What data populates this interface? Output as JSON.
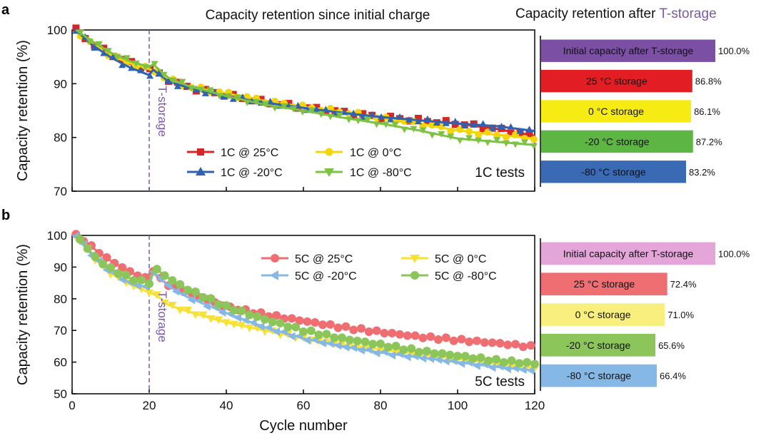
{
  "figure": {
    "panel_a_letter": "a",
    "panel_b_letter": "b",
    "left_title": "Capacity retention since initial charge",
    "right_title_prefix": "Capacity retention after ",
    "right_title_highlight": "T-storage",
    "storage_marker_label": "T-storage",
    "highlight_color": "#7b5aa6"
  },
  "chart_data": [
    {
      "id": "a-line",
      "type": "line",
      "title": "Capacity retention since initial charge",
      "xlabel": "",
      "ylabel": "Capacity retention (%)",
      "xlim": [
        0,
        120
      ],
      "ylim": [
        70,
        100
      ],
      "xticks": [
        0,
        20,
        40,
        60,
        80,
        100,
        120
      ],
      "yticks": [
        70,
        80,
        90,
        100
      ],
      "tag": "1C tests",
      "storage_cycle": 20,
      "series": [
        {
          "name": "1C @  25°C",
          "color": "#d62728",
          "marker": "square",
          "x": [
            1,
            5,
            10,
            15,
            20,
            21,
            25,
            30,
            40,
            50,
            60,
            70,
            80,
            90,
            100,
            110,
            120
          ],
          "y": [
            100,
            97.6,
            95.5,
            93.9,
            92.8,
            92.4,
            90.8,
            89.3,
            87.9,
            86.6,
            85.6,
            84.7,
            83.8,
            83.2,
            82.6,
            81.6,
            80.3
          ]
        },
        {
          "name": "1C @    0°C",
          "color": "#f2d60a",
          "marker": "circle",
          "x": [
            1,
            5,
            10,
            15,
            20,
            21,
            25,
            30,
            40,
            50,
            60,
            70,
            80,
            90,
            100,
            110,
            120
          ],
          "y": [
            100,
            97.4,
            95.3,
            93.8,
            92.7,
            92.5,
            90.8,
            89.5,
            88.2,
            86.8,
            85.7,
            84.8,
            83.6,
            82.6,
            81.3,
            80.5,
            79.8
          ]
        },
        {
          "name": "1C @ -20°C",
          "color": "#2f62b3",
          "marker": "triangle-up",
          "x": [
            1,
            5,
            10,
            15,
            20,
            21,
            25,
            30,
            40,
            50,
            60,
            70,
            80,
            90,
            100,
            110,
            120
          ],
          "y": [
            100,
            97.3,
            94.9,
            93.0,
            91.6,
            92.6,
            90.4,
            89.3,
            87.6,
            86.5,
            85.5,
            84.6,
            83.8,
            83.2,
            82.6,
            82.1,
            81.2
          ]
        },
        {
          "name": "1C @ -80°C",
          "color": "#7cc243",
          "marker": "triangle-down",
          "x": [
            1,
            5,
            10,
            15,
            20,
            21,
            25,
            30,
            40,
            50,
            60,
            70,
            80,
            90,
            100,
            110,
            120
          ],
          "y": [
            100,
            98.0,
            95.8,
            94.2,
            93.1,
            93.6,
            91.1,
            89.6,
            87.7,
            86.1,
            85.0,
            83.7,
            82.6,
            81.3,
            79.8,
            79.2,
            78.6
          ]
        }
      ]
    },
    {
      "id": "b-line",
      "type": "line",
      "title": "",
      "xlabel": "Cycle number",
      "ylabel": "Capacity retention (%)",
      "xlim": [
        0,
        120
      ],
      "ylim": [
        50,
        100
      ],
      "xticks": [
        0,
        20,
        40,
        60,
        80,
        100,
        120
      ],
      "yticks": [
        50,
        60,
        70,
        80,
        90,
        100
      ],
      "tag": "5C tests",
      "storage_cycle": 20,
      "series": [
        {
          "name": "5C @  25°C",
          "color": "#ee6e72",
          "marker": "circle",
          "x": [
            1,
            3,
            6,
            10,
            15,
            20,
            21,
            22,
            25,
            30,
            40,
            50,
            60,
            70,
            80,
            90,
            100,
            110,
            120
          ],
          "y": [
            100,
            98.5,
            95.5,
            92.0,
            88.5,
            86.0,
            89.0,
            87.0,
            84.5,
            82.0,
            77.5,
            75.0,
            73.0,
            71.0,
            69.5,
            68.0,
            67.0,
            66.0,
            64.8
          ]
        },
        {
          "name": "5C @    0°C",
          "color": "#f7e135",
          "marker": "triangle-down",
          "x": [
            1,
            3,
            6,
            10,
            15,
            20,
            21,
            22,
            25,
            30,
            40,
            50,
            60,
            70,
            80,
            90,
            100,
            110,
            120
          ],
          "y": [
            100,
            97.0,
            92.5,
            88.0,
            84.5,
            82.0,
            81.5,
            81.0,
            78.0,
            76.0,
            72.5,
            70.0,
            67.5,
            65.5,
            64.0,
            62.5,
            61.0,
            59.5,
            58.2
          ]
        },
        {
          "name": "5C @ -20°C",
          "color": "#86b8e6",
          "marker": "triangle-left",
          "x": [
            1,
            3,
            6,
            10,
            15,
            20,
            21,
            22,
            25,
            30,
            40,
            50,
            60,
            70,
            80,
            90,
            100,
            110,
            120
          ],
          "y": [
            100,
            97.0,
            92.5,
            88.5,
            85.0,
            83.5,
            88.5,
            87.5,
            84.0,
            80.5,
            75.5,
            71.0,
            67.5,
            65.0,
            63.0,
            61.5,
            60.0,
            58.5,
            57.3
          ]
        },
        {
          "name": "5C @ -80°C",
          "color": "#8cc65a",
          "marker": "circle",
          "x": [
            1,
            3,
            6,
            10,
            15,
            20,
            21,
            22,
            25,
            30,
            40,
            50,
            60,
            70,
            80,
            90,
            100,
            110,
            120
          ],
          "y": [
            100,
            97.5,
            93.0,
            89.5,
            86.5,
            85.0,
            89.0,
            89.2,
            86.5,
            83.0,
            77.5,
            73.5,
            70.0,
            67.5,
            65.5,
            63.5,
            62.0,
            60.5,
            59.5
          ]
        }
      ]
    },
    {
      "id": "a-bars",
      "type": "bar",
      "title": "Capacity retention after T-storage",
      "orientation": "horizontal",
      "unit": "%",
      "xlim": [
        0,
        100
      ],
      "categories": [
        "Initial capacity after T-storage",
        "25 °C storage",
        "0 °C storage",
        "-20 °C storage",
        "-80 °C storage"
      ],
      "values": [
        100.0,
        86.8,
        86.1,
        87.2,
        83.2
      ],
      "value_labels": [
        "100.0%",
        "86.8%",
        "86.1%",
        "87.2%",
        "83.2%"
      ],
      "colors": [
        "#7b4fa4",
        "#e31d24",
        "#f7eb14",
        "#5db544",
        "#3a6ab4"
      ]
    },
    {
      "id": "b-bars",
      "type": "bar",
      "orientation": "horizontal",
      "unit": "%",
      "xlim": [
        0,
        100
      ],
      "categories": [
        "Initial capacity after T-storage",
        "25 °C storage",
        "0 °C storage",
        "-20 °C storage",
        "-80 °C storage"
      ],
      "values": [
        100.0,
        72.4,
        71.0,
        65.6,
        66.4
      ],
      "value_labels": [
        "100.0%",
        "72.4%",
        "71.0%",
        "65.6%",
        "66.4%"
      ],
      "colors": [
        "#e4a6d9",
        "#ee6e72",
        "#f8ef7e",
        "#8cc65a",
        "#86b8e6"
      ]
    }
  ]
}
